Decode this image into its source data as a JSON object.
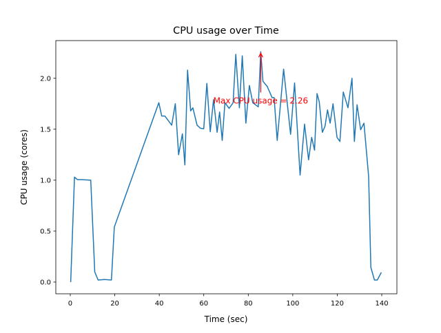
{
  "chart_data": {
    "type": "line",
    "title": "CPU usage over Time",
    "xlabel": "Time (sec)",
    "ylabel": "CPU usage (cores)",
    "xlim": [
      -6.5,
      146.8
    ],
    "ylim": [
      -0.115,
      2.37
    ],
    "xticks": [
      0,
      20,
      40,
      60,
      80,
      100,
      120,
      140
    ],
    "xtick_labels": [
      "0",
      "20",
      "40",
      "60",
      "80",
      "100",
      "120",
      "140"
    ],
    "yticks": [
      0.0,
      0.5,
      1.0,
      1.5,
      2.0
    ],
    "ytick_labels": [
      "0.0",
      "0.5",
      "1.0",
      "1.5",
      "2.0"
    ],
    "grid": false,
    "series": [
      {
        "color": "#1f77b4",
        "x": [
          0.2,
          1.9,
          3.2,
          5.0,
          9.2,
          11.0,
          12.5,
          15.4,
          18.5,
          19.8,
          39.8,
          41.1,
          42.5,
          45.6,
          47.2,
          48.7,
          50.4,
          51.5,
          52.7,
          54.1,
          55.1,
          57.0,
          58.5,
          60.0,
          61.4,
          62.9,
          64.4,
          66.0,
          67.1,
          68.3,
          69.5,
          71.4,
          73.2,
          74.4,
          76.0,
          77.3,
          78.9,
          80.5,
          82.0,
          84.5,
          85.6,
          86.6,
          88.5,
          90.7,
          91.6,
          93.0,
          95.9,
          99.0,
          100.8,
          103.3,
          105.3,
          107.1,
          108.5,
          109.8,
          110.9,
          111.9,
          113.3,
          114.5,
          115.6,
          116.8,
          118.1,
          119.9,
          121.2,
          122.7,
          124.8,
          126.6,
          127.7,
          128.9,
          130.5,
          132.0,
          134.1,
          135.1,
          136.7,
          138.0,
          139.8
        ],
        "y": [
          0.0,
          1.03,
          1.005,
          1.005,
          1.0,
          0.1,
          0.02,
          0.025,
          0.02,
          0.54,
          1.76,
          1.63,
          1.63,
          1.54,
          1.75,
          1.25,
          1.455,
          1.15,
          2.08,
          1.68,
          1.71,
          1.54,
          1.51,
          1.505,
          1.95,
          1.475,
          1.79,
          1.47,
          1.67,
          1.39,
          1.76,
          1.705,
          1.76,
          2.235,
          1.71,
          2.22,
          1.56,
          1.93,
          1.76,
          1.72,
          2.26,
          1.97,
          1.92,
          1.81,
          1.81,
          1.39,
          2.09,
          1.45,
          1.955,
          1.05,
          1.55,
          1.2,
          1.42,
          1.295,
          1.85,
          1.77,
          1.47,
          1.53,
          1.69,
          1.56,
          1.75,
          1.42,
          1.38,
          1.865,
          1.71,
          2.0,
          1.38,
          1.74,
          1.495,
          1.56,
          1.035,
          0.145,
          0.02,
          0.02,
          0.095
        ]
      }
    ],
    "annotation": {
      "text": "Max CPU usage = 2.26",
      "xy": [
        85.6,
        2.26
      ],
      "xytext": [
        85.6,
        1.78
      ],
      "color": "#ff0000"
    }
  }
}
